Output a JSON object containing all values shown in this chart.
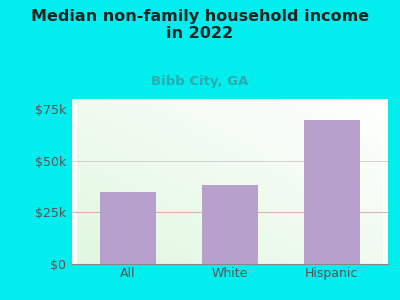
{
  "title": "Median non-family household income\nin 2022",
  "subtitle": "Bibb City, GA",
  "categories": [
    "All",
    "White",
    "Hispanic"
  ],
  "values": [
    35000,
    38500,
    70000
  ],
  "bar_color": "#b8a0cc",
  "background_color": "#00EEEE",
  "title_color": "#222222",
  "subtitle_color": "#2aacac",
  "tick_color": "#555555",
  "grid_color_25k": "#e0b0b0",
  "ylim": [
    0,
    80000
  ],
  "yticks": [
    0,
    25000,
    50000,
    75000
  ],
  "ytick_labels": [
    "$0",
    "$25k",
    "$50k",
    "$75k"
  ],
  "title_fontsize": 11.5,
  "subtitle_fontsize": 9.5
}
